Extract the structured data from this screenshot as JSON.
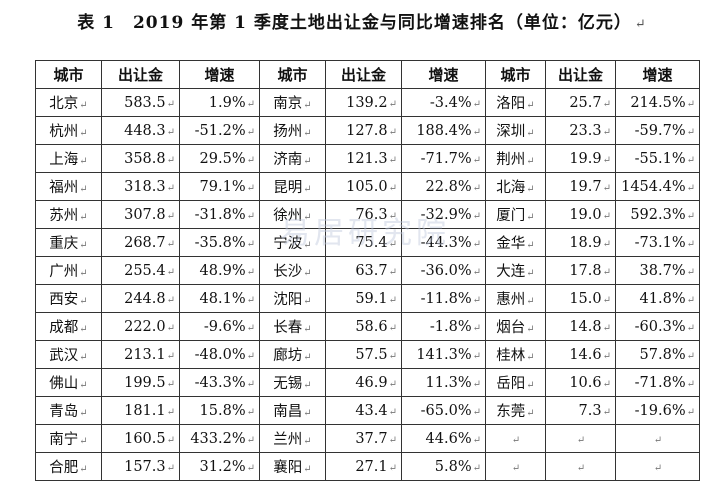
{
  "title": "表 1　2019 年第 1 季度土地出让金与同比增速排名（单位：亿元）",
  "paragraph_mark": "↵",
  "headers": [
    "城市",
    "出让金",
    "增速",
    "城市",
    "出让金",
    "增速",
    "城市",
    "出让金",
    "增速"
  ],
  "rows": [
    [
      "北京",
      "583.5",
      "1.9%",
      "南京",
      "139.2",
      "-3.4%",
      "洛阳",
      "25.7",
      "214.5%"
    ],
    [
      "杭州",
      "448.3",
      "-51.2%",
      "扬州",
      "127.8",
      "188.4%",
      "深圳",
      "23.3",
      "-59.7%"
    ],
    [
      "上海",
      "358.8",
      "29.5%",
      "济南",
      "121.3",
      "-71.7%",
      "荆州",
      "19.9",
      "-55.1%"
    ],
    [
      "福州",
      "318.3",
      "79.1%",
      "昆明",
      "105.0",
      "22.8%",
      "北海",
      "19.7",
      "1454.4%"
    ],
    [
      "苏州",
      "307.8",
      "-31.8%",
      "徐州",
      "76.3",
      "-32.9%",
      "厦门",
      "19.0",
      "592.3%"
    ],
    [
      "重庆",
      "268.7",
      "-35.8%",
      "宁波",
      "75.4",
      "-44.3%",
      "金华",
      "18.9",
      "-73.1%"
    ],
    [
      "广州",
      "255.4",
      "48.9%",
      "长沙",
      "63.7",
      "-36.0%",
      "大连",
      "17.8",
      "38.7%"
    ],
    [
      "西安",
      "244.8",
      "48.1%",
      "沈阳",
      "59.1",
      "-11.8%",
      "惠州",
      "15.0",
      "41.8%"
    ],
    [
      "成都",
      "222.0",
      "-9.6%",
      "长春",
      "58.6",
      "-1.8%",
      "烟台",
      "14.8",
      "-60.3%"
    ],
    [
      "武汉",
      "213.1",
      "-48.0%",
      "廊坊",
      "57.5",
      "141.3%",
      "桂林",
      "14.6",
      "57.8%"
    ],
    [
      "佛山",
      "199.5",
      "-43.3%",
      "无锡",
      "46.9",
      "11.3%",
      "岳阳",
      "10.6",
      "-71.8%"
    ],
    [
      "青岛",
      "181.1",
      "15.8%",
      "南昌",
      "43.4",
      "-65.0%",
      "东莞",
      "7.3",
      "-19.6%"
    ],
    [
      "南宁",
      "160.5",
      "433.2%",
      "兰州",
      "37.7",
      "44.6%",
      "",
      "",
      ""
    ],
    [
      "合肥",
      "157.3",
      "31.2%",
      "襄阳",
      "27.1",
      "5.8%",
      "",
      "",
      ""
    ]
  ],
  "watermark": "易居研究院"
}
